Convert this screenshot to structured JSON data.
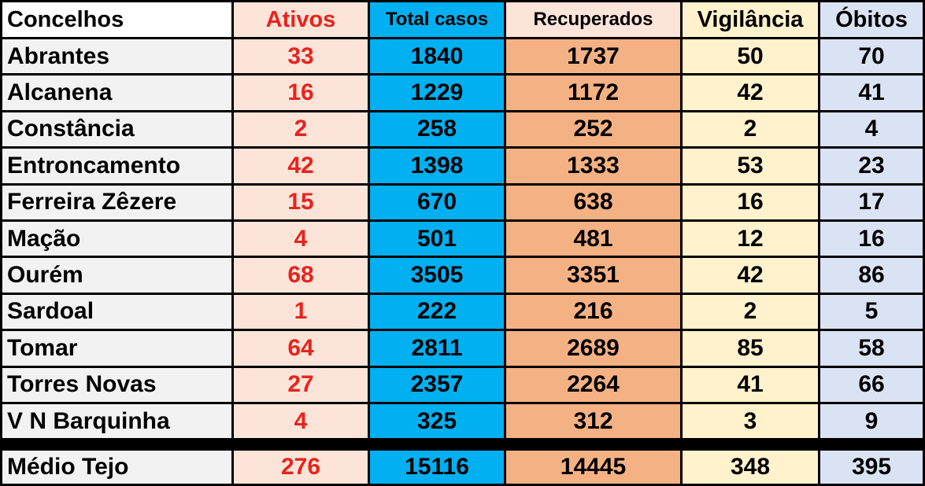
{
  "table": {
    "headers": [
      "Concelhos",
      "Ativos",
      "Total casos",
      "Recuperados",
      "Vigilância",
      "Óbitos"
    ],
    "rows": [
      {
        "concelho": "Abrantes",
        "ativos": "33",
        "total": "1840",
        "recuperados": "1737",
        "vigilancia": "50",
        "obitos": "70"
      },
      {
        "concelho": "Alcanena",
        "ativos": "16",
        "total": "1229",
        "recuperados": "1172",
        "vigilancia": "42",
        "obitos": "41"
      },
      {
        "concelho": "Constância",
        "ativos": "2",
        "total": "258",
        "recuperados": "252",
        "vigilancia": "2",
        "obitos": "4"
      },
      {
        "concelho": "Entroncamento",
        "ativos": "42",
        "total": "1398",
        "recuperados": "1333",
        "vigilancia": "53",
        "obitos": "23"
      },
      {
        "concelho": "Ferreira Zêzere",
        "ativos": "15",
        "total": "670",
        "recuperados": "638",
        "vigilancia": "16",
        "obitos": "17"
      },
      {
        "concelho": "Mação",
        "ativos": "4",
        "total": "501",
        "recuperados": "481",
        "vigilancia": "12",
        "obitos": "16"
      },
      {
        "concelho": "Ourém",
        "ativos": "68",
        "total": "3505",
        "recuperados": "3351",
        "vigilancia": "42",
        "obitos": "86"
      },
      {
        "concelho": "Sardoal",
        "ativos": "1",
        "total": "222",
        "recuperados": "216",
        "vigilancia": "2",
        "obitos": "5"
      },
      {
        "concelho": "Tomar",
        "ativos": "64",
        "total": "2811",
        "recuperados": "2689",
        "vigilancia": "85",
        "obitos": "58"
      },
      {
        "concelho": "Torres Novas",
        "ativos": "27",
        "total": "2357",
        "recuperados": "2264",
        "vigilancia": "41",
        "obitos": "66"
      },
      {
        "concelho": "V N Barquinha",
        "ativos": "4",
        "total": "325",
        "recuperados": "312",
        "vigilancia": "3",
        "obitos": "9"
      }
    ],
    "total_row": {
      "concelho": "Médio Tejo",
      "ativos": "276",
      "total": "15116",
      "recuperados": "14445",
      "vigilancia": "348",
      "obitos": "395"
    }
  },
  "colors": {
    "ativos_text": "#e8231e",
    "ativos_bg": "#fce4d8",
    "total_bg": "#00b0f0",
    "recuperados_bg": "#f4b183",
    "vigilancia_bg": "#fff2cc",
    "obitos_bg": "#dae3f3"
  }
}
